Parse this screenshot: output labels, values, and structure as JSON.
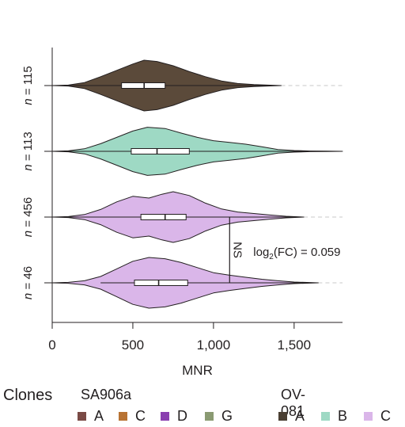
{
  "chart_data": {
    "type": "violin",
    "orientation": "horizontal",
    "xlabel": "MNR",
    "xlim": [
      0,
      1800
    ],
    "xticks": [
      0,
      500,
      1000,
      1500
    ],
    "xtick_labels": [
      "0",
      "500",
      "1,000",
      "1,500"
    ],
    "grid": false,
    "series": [
      {
        "label": "n = 115",
        "n": 115,
        "clone": "A",
        "color": "#5b4a3a",
        "min": 0,
        "max": 1800,
        "q1": 430,
        "median": 570,
        "q3": 700,
        "whisker_low": 0,
        "whisker_high": 1420,
        "density": [
          [
            0,
            0
          ],
          [
            100,
            0.02
          ],
          [
            200,
            0.12
          ],
          [
            300,
            0.35
          ],
          [
            400,
            0.6
          ],
          [
            500,
            0.85
          ],
          [
            570,
            1
          ],
          [
            650,
            0.95
          ],
          [
            750,
            0.78
          ],
          [
            850,
            0.55
          ],
          [
            950,
            0.35
          ],
          [
            1050,
            0.18
          ],
          [
            1150,
            0.08
          ],
          [
            1250,
            0.04
          ],
          [
            1350,
            0.015
          ],
          [
            1420,
            0
          ]
        ]
      },
      {
        "label": "n = 113",
        "n": 113,
        "clone": "B",
        "color": "#9ed9c4",
        "min": 0,
        "max": 1800,
        "q1": 490,
        "median": 650,
        "q3": 850,
        "whisker_low": 0,
        "whisker_high": 1800,
        "density": [
          [
            0,
            0
          ],
          [
            100,
            0.02
          ],
          [
            200,
            0.1
          ],
          [
            300,
            0.3
          ],
          [
            400,
            0.55
          ],
          [
            500,
            0.8
          ],
          [
            590,
            0.95
          ],
          [
            700,
            0.9
          ],
          [
            800,
            0.72
          ],
          [
            900,
            0.55
          ],
          [
            1000,
            0.42
          ],
          [
            1100,
            0.35
          ],
          [
            1200,
            0.28
          ],
          [
            1300,
            0.18
          ],
          [
            1400,
            0.07
          ],
          [
            1500,
            0.03
          ],
          [
            1600,
            0.012
          ],
          [
            1700,
            0.006
          ],
          [
            1800,
            0
          ]
        ]
      },
      {
        "label": "n = 456",
        "n": 456,
        "clone": "C",
        "color": "#dab6e9",
        "min": 0,
        "max": 1560,
        "q1": 550,
        "median": 700,
        "q3": 830,
        "whisker_low": 0,
        "whisker_high": 1560,
        "density": [
          [
            0,
            0
          ],
          [
            100,
            0.02
          ],
          [
            200,
            0.1
          ],
          [
            300,
            0.3
          ],
          [
            400,
            0.6
          ],
          [
            500,
            0.82
          ],
          [
            600,
            0.75
          ],
          [
            680,
            0.9
          ],
          [
            750,
            1
          ],
          [
            850,
            0.85
          ],
          [
            950,
            0.55
          ],
          [
            1050,
            0.32
          ],
          [
            1150,
            0.2
          ],
          [
            1250,
            0.14
          ],
          [
            1350,
            0.08
          ],
          [
            1450,
            0.03
          ],
          [
            1560,
            0
          ]
        ]
      },
      {
        "label": "n = 46",
        "n": 46,
        "clone": "C",
        "color": "#dab6e9",
        "min": 0,
        "max": 1650,
        "q1": 510,
        "median": 660,
        "q3": 840,
        "whisker_low": 300,
        "whisker_high": 1650,
        "density": [
          [
            0,
            0
          ],
          [
            100,
            0.02
          ],
          [
            200,
            0.08
          ],
          [
            300,
            0.25
          ],
          [
            400,
            0.55
          ],
          [
            500,
            0.85
          ],
          [
            600,
            1
          ],
          [
            700,
            0.95
          ],
          [
            800,
            0.8
          ],
          [
            900,
            0.6
          ],
          [
            1000,
            0.4
          ],
          [
            1100,
            0.3
          ],
          [
            1200,
            0.22
          ],
          [
            1300,
            0.14
          ],
          [
            1400,
            0.08
          ],
          [
            1500,
            0.03
          ],
          [
            1650,
            0
          ]
        ]
      }
    ],
    "annotation": {
      "significance": "NS",
      "stat_prefix": "log",
      "stat_subscript": "2",
      "stat_suffix": "(FC) = 0.059",
      "bracket_x": 1100,
      "between": [
        "n = 456",
        "n = 46"
      ]
    }
  },
  "legend": {
    "title": "Clones",
    "groups": [
      {
        "name": "SA906a",
        "items": [
          {
            "label": "A",
            "color": "#7a4a45"
          },
          {
            "label": "C",
            "color": "#b87333"
          },
          {
            "label": "D",
            "color": "#8a3fb0"
          },
          {
            "label": "G",
            "color": "#8a9a72"
          }
        ]
      },
      {
        "name": "OV-081",
        "items": [
          {
            "label": "A",
            "color": "#4a3f33"
          },
          {
            "label": "B",
            "color": "#9ed9c4"
          },
          {
            "label": "C",
            "color": "#dab6e9"
          }
        ]
      }
    ]
  }
}
